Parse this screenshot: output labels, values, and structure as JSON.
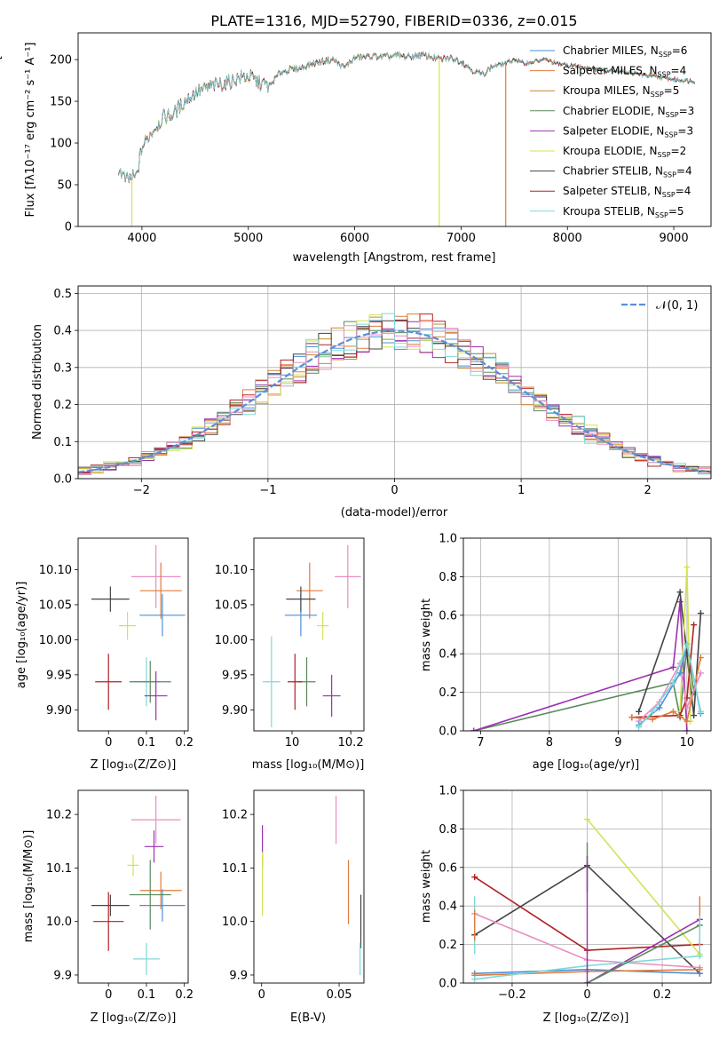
{
  "chart_data": [
    {
      "id": "spectrum",
      "type": "line",
      "title": "PLATE=1316, MJD=52790, FIBERID=0336, z=0.015",
      "xlabel": "wavelength [Angstrom, rest frame]",
      "ylabel": "Flux [fλ10⁻¹⁷ erg cm⁻² s⁻¹ A⁻¹]",
      "xlim": [
        3400,
        9350
      ],
      "ylim": [
        0,
        232
      ],
      "xticks": [
        4000,
        5000,
        6000,
        7000,
        8000,
        9000
      ],
      "yticks": [
        0,
        50,
        100,
        150,
        200
      ],
      "legend_position": "top-right",
      "series": [
        {
          "name": "Chabrier MILES, N",
          "sub": "SSP",
          "count": "=6",
          "color": "#4a90d9"
        },
        {
          "name": "Salpeter MILES, N",
          "sub": "SSP",
          "count": "=4",
          "color": "#e07b39"
        },
        {
          "name": "Kroupa MILES, N",
          "sub": "SSP",
          "count": "=5",
          "color": "#c9882f"
        },
        {
          "name": "Chabrier ELODIE, N",
          "sub": "SSP",
          "count": "=3",
          "color": "#5a8a5a"
        },
        {
          "name": "Salpeter ELODIE, N",
          "sub": "SSP",
          "count": "=3",
          "color": "#9b30b0"
        },
        {
          "name": "Kroupa ELODIE, N",
          "sub": "SSP",
          "count": "=2",
          "color": "#d4e157"
        },
        {
          "name": "Chabrier STELIB, N",
          "sub": "SSP",
          "count": "=4",
          "color": "#444444"
        },
        {
          "name": "Salpeter STELIB, N",
          "sub": "SSP",
          "count": "=4",
          "color": "#b22222"
        },
        {
          "name": "Kroupa STELIB, N",
          "sub": "SSP",
          "count": "=5",
          "color": "#7fd8d8"
        }
      ],
      "continuum": [
        [
          3780,
          70
        ],
        [
          3850,
          55
        ],
        [
          3950,
          60
        ],
        [
          4000,
          95
        ],
        [
          4100,
          115
        ],
        [
          4200,
          130
        ],
        [
          4300,
          135
        ],
        [
          4400,
          150
        ],
        [
          4500,
          160
        ],
        [
          4600,
          165
        ],
        [
          4700,
          170
        ],
        [
          4800,
          172
        ],
        [
          4900,
          178
        ],
        [
          5000,
          180
        ],
        [
          5100,
          172
        ],
        [
          5200,
          168
        ],
        [
          5300,
          185
        ],
        [
          5400,
          188
        ],
        [
          5500,
          190
        ],
        [
          5600,
          195
        ],
        [
          5700,
          198
        ],
        [
          5800,
          200
        ],
        [
          5900,
          190
        ],
        [
          6000,
          202
        ],
        [
          6100,
          203
        ],
        [
          6200,
          204
        ],
        [
          6300,
          203
        ],
        [
          6400,
          205
        ],
        [
          6500,
          203
        ],
        [
          6600,
          205
        ],
        [
          6700,
          204
        ],
        [
          6800,
          200
        ],
        [
          6900,
          202
        ],
        [
          7000,
          198
        ],
        [
          7100,
          188
        ],
        [
          7200,
          182
        ],
        [
          7300,
          192
        ],
        [
          7400,
          195
        ],
        [
          7500,
          200
        ],
        [
          7600,
          195
        ],
        [
          7700,
          198
        ],
        [
          7800,
          200
        ],
        [
          7900,
          195
        ],
        [
          8000,
          193
        ],
        [
          8100,
          192
        ],
        [
          8200,
          190
        ],
        [
          8300,
          188
        ],
        [
          8400,
          187
        ],
        [
          8500,
          186
        ],
        [
          8600,
          184
        ],
        [
          8700,
          182
        ],
        [
          8800,
          180
        ],
        [
          8900,
          178
        ],
        [
          9000,
          176
        ],
        [
          9100,
          175
        ],
        [
          9200,
          174
        ]
      ],
      "dips": [
        {
          "x": 3905,
          "color": "#d4e157"
        },
        {
          "x": 6795,
          "color": "#d4e157"
        },
        {
          "x": 7420,
          "color": "#e07b39"
        }
      ]
    },
    {
      "id": "residuals",
      "type": "histogram",
      "xlabel": "(data-model)/error",
      "ylabel": "Normed distribution",
      "xlim": [
        -2.5,
        2.5
      ],
      "ylim": [
        0,
        0.52
      ],
      "xticks": [
        -2,
        -1,
        0,
        1,
        2
      ],
      "yticks": [
        0.0,
        0.1,
        0.2,
        0.3,
        0.4,
        0.5
      ],
      "grid": true,
      "legend_position": "top-right",
      "reference_label": "𝒩(0, 1)",
      "bin_width": 0.1,
      "hist_colors": [
        "#4a90d9",
        "#e07b39",
        "#c9882f",
        "#5a8a5a",
        "#9b30b0",
        "#d4e157",
        "#444444",
        "#b22222",
        "#7fd8d8",
        "#e88fbf"
      ]
    },
    {
      "id": "age-vs-Z",
      "type": "errorbar",
      "xlabel": "Z [log₁₀(Z/Z⊙)]",
      "ylabel": "age  [log₁₀(age/yr)]",
      "xlim": [
        -0.08,
        0.21
      ],
      "ylim": [
        9.87,
        10.145
      ],
      "xticks": [
        0.0,
        0.1,
        0.2
      ],
      "yticks": [
        9.9,
        9.95,
        10.0,
        10.05,
        10.1
      ],
      "points": [
        {
          "x": 0.125,
          "y": 10.09,
          "xerr": 0.065,
          "yerr": 0.045,
          "color": "#e88fbf"
        },
        {
          "x": 0.138,
          "y": 10.07,
          "xerr": 0.055,
          "yerr": 0.04,
          "color": "#e07b39"
        },
        {
          "x": 0.142,
          "y": 10.035,
          "xerr": 0.06,
          "yerr": 0.03,
          "color": "#4a90d9"
        },
        {
          "x": 0.005,
          "y": 10.058,
          "xerr": 0.05,
          "yerr": 0.018,
          "color": "#444444"
        },
        {
          "x": 0.05,
          "y": 10.02,
          "xerr": 0.022,
          "yerr": 0.02,
          "color": "#d4e157"
        },
        {
          "x": 0.1,
          "y": 9.94,
          "xerr": 0.035,
          "yerr": 0.035,
          "color": "#7fd8d8"
        },
        {
          "x": 0.11,
          "y": 9.94,
          "xerr": 0.055,
          "yerr": 0.03,
          "color": "#5a8a5a"
        },
        {
          "x": 0.125,
          "y": 9.92,
          "xerr": 0.03,
          "yerr": 0.035,
          "color": "#9b30b0"
        },
        {
          "x": 0.0,
          "y": 9.94,
          "xerr": 0.035,
          "yerr": 0.04,
          "color": "#b22222"
        }
      ]
    },
    {
      "id": "age-vs-mass",
      "type": "errorbar",
      "xlabel": "mass [log₁₀(M/M⊙)]",
      "ylabel": "",
      "xlim": [
        9.87,
        10.245
      ],
      "ylim": [
        9.87,
        10.145
      ],
      "xticks": [
        10.0,
        10.2
      ],
      "yticks": [
        9.9,
        9.95,
        10.0,
        10.05,
        10.1
      ],
      "points": [
        {
          "x": 10.19,
          "y": 10.09,
          "xerr": 0.045,
          "yerr": 0.045,
          "color": "#e88fbf"
        },
        {
          "x": 10.06,
          "y": 10.07,
          "xerr": 0.045,
          "yerr": 0.04,
          "color": "#e07b39"
        },
        {
          "x": 10.03,
          "y": 10.035,
          "xerr": 0.055,
          "yerr": 0.03,
          "color": "#4a90d9"
        },
        {
          "x": 10.03,
          "y": 10.058,
          "xerr": 0.05,
          "yerr": 0.018,
          "color": "#444444"
        },
        {
          "x": 10.105,
          "y": 10.02,
          "xerr": 0.02,
          "yerr": 0.02,
          "color": "#d4e157"
        },
        {
          "x": 9.93,
          "y": 9.94,
          "xerr": 0.03,
          "yerr": 0.065,
          "color": "#7fd8d8"
        },
        {
          "x": 10.05,
          "y": 9.94,
          "xerr": 0.03,
          "yerr": 0.035,
          "color": "#5a8a5a"
        },
        {
          "x": 10.135,
          "y": 9.92,
          "xerr": 0.03,
          "yerr": 0.03,
          "color": "#9b30b0"
        },
        {
          "x": 10.01,
          "y": 9.94,
          "xerr": 0.025,
          "yerr": 0.04,
          "color": "#b22222"
        }
      ]
    },
    {
      "id": "weight-vs-age",
      "type": "line",
      "xlabel": "age  [log₁₀(age/yr)]",
      "ylabel": "mass weight",
      "xlim": [
        6.75,
        10.35
      ],
      "ylim": [
        0.0,
        1.0
      ],
      "xticks": [
        7,
        8,
        9,
        10
      ],
      "yticks": [
        0.0,
        0.2,
        0.4,
        0.6,
        0.8,
        1.0
      ],
      "grid": true,
      "series": [
        {
          "color": "#5a8a5a",
          "x": [
            6.9,
            9.8,
            9.9,
            10.0,
            10.1
          ],
          "y": [
            0.0,
            0.25,
            0.07,
            0.45,
            0.2
          ]
        },
        {
          "color": "#9b30b0",
          "x": [
            6.9,
            9.8,
            9.9,
            10.0
          ],
          "y": [
            0.0,
            0.33,
            0.67,
            0.0
          ]
        },
        {
          "color": "#444444",
          "x": [
            9.3,
            9.9,
            10.1,
            10.2
          ],
          "y": [
            0.1,
            0.72,
            0.08,
            0.61
          ]
        },
        {
          "color": "#d4e157",
          "x": [
            9.9,
            10.0,
            10.05
          ],
          "y": [
            0.1,
            0.85,
            0.05
          ]
        },
        {
          "color": "#b22222",
          "x": [
            9.2,
            9.9,
            10.0,
            10.1
          ],
          "y": [
            0.07,
            0.08,
            0.17,
            0.55
          ]
        },
        {
          "color": "#e07b39",
          "x": [
            9.2,
            9.5,
            9.8,
            10.0,
            10.2
          ],
          "y": [
            0.07,
            0.06,
            0.1,
            0.05,
            0.38
          ]
        },
        {
          "color": "#e88fbf",
          "x": [
            9.3,
            9.6,
            9.9,
            10.0,
            10.2
          ],
          "y": [
            0.05,
            0.15,
            0.35,
            0.12,
            0.3
          ]
        },
        {
          "color": "#4a90d9",
          "x": [
            9.3,
            9.6,
            9.9,
            10.0,
            10.2
          ],
          "y": [
            0.03,
            0.12,
            0.3,
            0.45,
            0.09
          ]
        },
        {
          "color": "#7fd8d8",
          "x": [
            9.3,
            9.5,
            9.8,
            10.0,
            10.2
          ],
          "y": [
            0.02,
            0.1,
            0.25,
            0.45,
            0.1
          ]
        }
      ]
    },
    {
      "id": "mass-vs-Z",
      "type": "errorbar",
      "xlabel": "Z [log₁₀(Z/Z⊙)]",
      "ylabel": "mass [log₁₀(M/M⊙)]",
      "xlim": [
        -0.08,
        0.21
      ],
      "ylim": [
        9.885,
        10.245
      ],
      "xticks": [
        0.0,
        0.1,
        0.2
      ],
      "yticks": [
        9.9,
        10.0,
        10.1,
        10.2
      ],
      "points": [
        {
          "x": 0.125,
          "y": 10.19,
          "xerr": 0.065,
          "yerr": 0.045,
          "color": "#e88fbf"
        },
        {
          "x": 0.12,
          "y": 10.14,
          "xerr": 0.025,
          "yerr": 0.03,
          "color": "#9b30b0"
        },
        {
          "x": 0.138,
          "y": 10.058,
          "xerr": 0.055,
          "yerr": 0.035,
          "color": "#e07b39"
        },
        {
          "x": 0.142,
          "y": 10.03,
          "xerr": 0.06,
          "yerr": 0.03,
          "color": "#4a90d9"
        },
        {
          "x": 0.005,
          "y": 10.03,
          "xerr": 0.05,
          "yerr": 0.02,
          "color": "#444444"
        },
        {
          "x": 0.065,
          "y": 10.105,
          "xerr": 0.015,
          "yerr": 0.02,
          "color": "#d4e157"
        },
        {
          "x": 0.1,
          "y": 9.93,
          "xerr": 0.035,
          "yerr": 0.03,
          "color": "#7fd8d8"
        },
        {
          "x": 0.11,
          "y": 10.05,
          "xerr": 0.055,
          "yerr": 0.065,
          "color": "#5a8a5a"
        },
        {
          "x": 0.0,
          "y": 10.0,
          "xerr": 0.04,
          "yerr": 0.055,
          "color": "#b22222"
        }
      ]
    },
    {
      "id": "mass-vs-ebv",
      "type": "errorbar",
      "xlabel": "E(B-V)",
      "ylabel": "",
      "xlim": [
        -0.005,
        0.066
      ],
      "ylim": [
        9.885,
        10.245
      ],
      "xticks": [
        0.0,
        0.05
      ],
      "yticks": [
        9.9,
        10.0,
        10.1,
        10.2
      ],
      "points": [
        {
          "x": 0.048,
          "y": 10.19,
          "xerr": 0.0,
          "yerr": 0.045,
          "color": "#e88fbf"
        },
        {
          "x": 0.0005,
          "y": 10.14,
          "xerr": 0.0,
          "yerr": 0.04,
          "color": "#9b30b0"
        },
        {
          "x": 0.0005,
          "y": 10.07,
          "xerr": 0.0,
          "yerr": 0.06,
          "color": "#d4e157"
        },
        {
          "x": 0.056,
          "y": 10.055,
          "xerr": 0.0,
          "yerr": 0.06,
          "color": "#e07b39"
        },
        {
          "x": 0.064,
          "y": 10.0,
          "xerr": 0.0,
          "yerr": 0.05,
          "color": "#444444"
        },
        {
          "x": 0.0635,
          "y": 9.93,
          "xerr": 0.0,
          "yerr": 0.03,
          "color": "#7fd8d8"
        }
      ]
    },
    {
      "id": "weight-vs-Z",
      "type": "line",
      "xlabel": "Z [log₁₀(Z/Z⊙)]",
      "ylabel": "mass weight",
      "xlim": [
        -0.33,
        0.33
      ],
      "ylim": [
        0.0,
        1.0
      ],
      "xticks": [
        -0.2,
        0.0,
        0.2
      ],
      "yticks": [
        0.0,
        0.2,
        0.4,
        0.6,
        0.8,
        1.0
      ],
      "grid": true,
      "series": [
        {
          "color": "#b22222",
          "x": [
            -0.3,
            0.0,
            0.3
          ],
          "y": [
            0.55,
            0.17,
            0.2
          ]
        },
        {
          "color": "#444444",
          "x": [
            -0.3,
            0.0,
            0.3
          ],
          "y": [
            0.25,
            0.61,
            0.05
          ]
        },
        {
          "color": "#d4e157",
          "x": [
            0.0,
            0.3
          ],
          "y": [
            0.85,
            0.15
          ]
        },
        {
          "color": "#e88fbf",
          "x": [
            -0.3,
            0.0,
            0.3
          ],
          "y": [
            0.36,
            0.12,
            0.08
          ]
        },
        {
          "color": "#9b30b0",
          "x": [
            0.0,
            0.3
          ],
          "y": [
            0.0,
            0.33
          ]
        },
        {
          "color": "#4a90d9",
          "x": [
            -0.3,
            0.0,
            0.3
          ],
          "y": [
            0.05,
            0.07,
            0.05
          ]
        },
        {
          "color": "#e07b39",
          "x": [
            -0.3,
            0.0,
            0.3
          ],
          "y": [
            0.04,
            0.06,
            0.07
          ]
        },
        {
          "color": "#7fd8d8",
          "x": [
            -0.3,
            0.0,
            0.3
          ],
          "y": [
            0.02,
            0.09,
            0.14
          ]
        },
        {
          "color": "#5a8a5a",
          "x": [
            0.0,
            0.3
          ],
          "y": [
            0.0,
            0.3
          ]
        }
      ],
      "errorbars": [
        {
          "x": -0.3,
          "y": 0.3,
          "yerr": 0.15,
          "color": "#7fd8d8"
        },
        {
          "x": -0.3,
          "y": 0.3,
          "yerr": 0.08,
          "color": "#e07b39"
        },
        {
          "x": 0.0,
          "y": 0.6,
          "yerr": 0.13,
          "color": "#5a8a5a"
        },
        {
          "x": 0.0,
          "y": 0.33,
          "yerr": 0.33,
          "color": "#9b30b0"
        },
        {
          "x": 0.3,
          "y": 0.3,
          "yerr": 0.15,
          "color": "#e07b39"
        },
        {
          "x": 0.3,
          "y": 0.25,
          "yerr": 0.1,
          "color": "#7fd8d8"
        }
      ]
    }
  ]
}
